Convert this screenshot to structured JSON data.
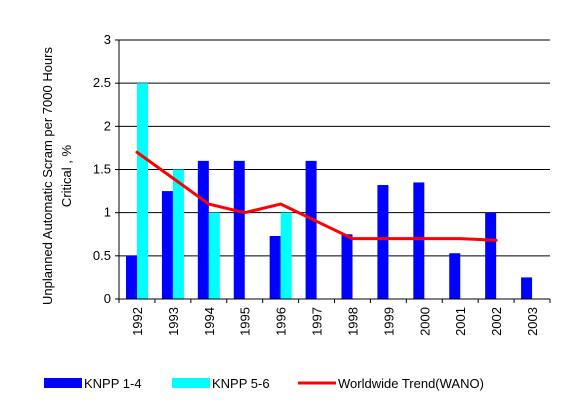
{
  "chart_data": {
    "type": "bar",
    "categories": [
      "1992",
      "1993",
      "1994",
      "1995",
      "1996",
      "1997",
      "1998",
      "1999",
      "2000",
      "2001",
      "2002",
      "2003"
    ],
    "series": [
      {
        "name": "KNPP 1-4",
        "kind": "bar",
        "color": "#0000ff",
        "values": [
          0.5,
          1.25,
          1.6,
          1.6,
          0.73,
          1.6,
          0.75,
          1.32,
          1.35,
          0.53,
          1.0,
          0.25
        ]
      },
      {
        "name": "KNPP 5-6",
        "kind": "bar",
        "color": "#00ffff",
        "values": [
          2.5,
          1.5,
          1.0,
          null,
          1.0,
          null,
          null,
          null,
          null,
          null,
          null,
          null
        ]
      },
      {
        "name": "Worldwide Trend(WANO)",
        "kind": "line",
        "color": "#ff0000",
        "values": [
          1.7,
          1.4,
          1.1,
          1.0,
          1.1,
          0.9,
          0.7,
          0.7,
          0.7,
          0.7,
          0.68,
          null
        ]
      }
    ],
    "title": "",
    "xlabel": "",
    "ylabel_line1": "Unplanned Automatic Scram per 7000 Hours",
    "ylabel_line2": "Critical , %",
    "ylim": [
      0,
      3
    ],
    "yticks": [
      "0",
      "0.5",
      "1",
      "1.5",
      "2",
      "2.5",
      "3"
    ],
    "grid": true,
    "legend_position": "bottom"
  }
}
